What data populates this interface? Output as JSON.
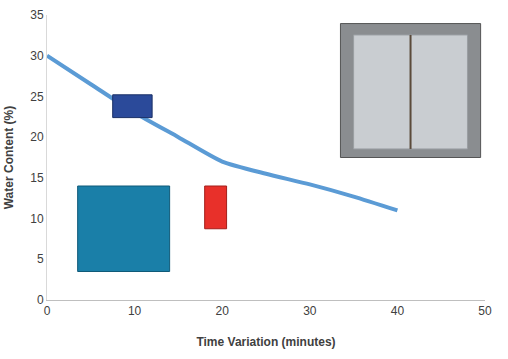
{
  "chart_data": {
    "type": "line",
    "x_label": "Time Variation (minutes)",
    "y_label": "Water Content (%)",
    "x": [
      0,
      5,
      10,
      15,
      20,
      25,
      30,
      35,
      40
    ],
    "values": [
      30,
      26.5,
      23,
      20,
      17,
      15.5,
      14.2,
      12.7,
      11
    ],
    "color": "#5b9bd5",
    "xlim": [
      0,
      50
    ],
    "xticks": [
      0,
      10,
      20,
      30,
      40,
      50
    ],
    "ylim": [
      0,
      35
    ],
    "yticks": [
      0,
      5,
      10,
      15,
      20,
      25,
      30,
      35
    ],
    "grid": false
  }
}
